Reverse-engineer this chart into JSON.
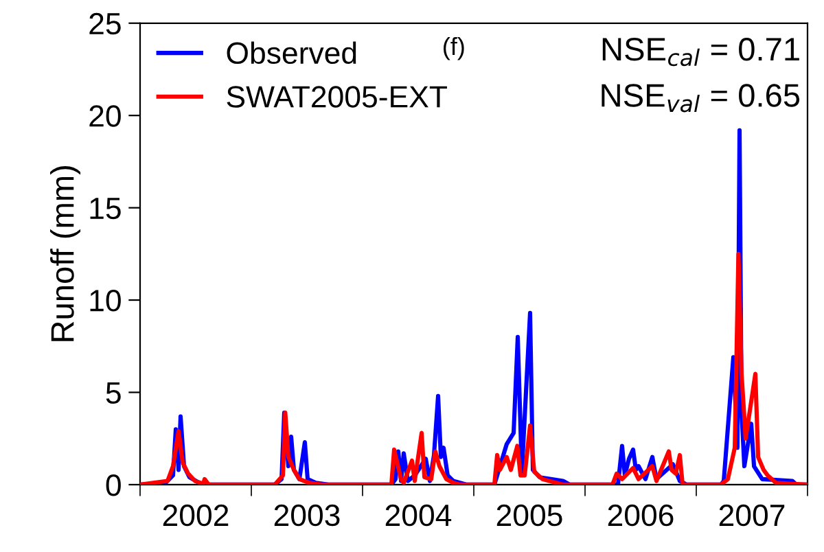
{
  "chart_data": {
    "type": "line",
    "ylabel": "Runoff (mm)",
    "annotations": [
      "(f)",
      "NSE$_{cal}$ = 0.71",
      "NSE$_{val}$ = 0.65"
    ],
    "xlim": [
      2002,
      2008
    ],
    "xticks": [
      {
        "value": 2002,
        "label": null
      },
      {
        "value": 2003,
        "label": null
      },
      {
        "value": 2004,
        "label": null
      },
      {
        "value": 2005,
        "label": null
      },
      {
        "value": 2006,
        "label": null
      },
      {
        "value": 2007,
        "label": null
      },
      {
        "value": 2008,
        "label": null
      },
      {
        "value": 2002.5,
        "label": "2002"
      },
      {
        "value": 2003.5,
        "label": "2003"
      },
      {
        "value": 2004.5,
        "label": "2004"
      },
      {
        "value": 2005.5,
        "label": "2005"
      },
      {
        "value": 2006.5,
        "label": "2006"
      },
      {
        "value": 2007.5,
        "label": "2007"
      }
    ],
    "ylim": [
      0,
      25
    ],
    "yticks": [
      0,
      5,
      10,
      15,
      20,
      25
    ],
    "grid": false,
    "legend": "top left",
    "marker": "none",
    "line_style": "solid",
    "series": [
      {
        "name": "Observed",
        "color": "#0000ff",
        "x": [
          2002.0,
          2002.222,
          2002.296,
          2002.321,
          2002.346,
          2002.364,
          2002.395,
          2002.444,
          2002.531,
          2002.593,
          2003.21,
          2003.272,
          2003.296,
          2003.333,
          2003.358,
          2003.383,
          2003.432,
          2003.481,
          2003.506,
          2003.58,
          2003.704,
          2004.259,
          2004.296,
          2004.321,
          2004.346,
          2004.37,
          2004.407,
          2004.469,
          2004.568,
          2004.605,
          2004.642,
          2004.679,
          2004.704,
          2004.728,
          2004.765,
          2004.815,
          2004.938,
          2005.185,
          2005.296,
          2005.358,
          2005.395,
          2005.432,
          2005.506,
          2005.531,
          2005.593,
          2005.802,
          2005.864,
          2006.296,
          2006.333,
          2006.358,
          2006.395,
          2006.432,
          2006.457,
          2006.481,
          2006.543,
          2006.605,
          2006.642,
          2006.79,
          2006.852,
          2006.914,
          2007.222,
          2007.247,
          2007.333,
          2007.37,
          2007.389,
          2007.407,
          2007.432,
          2007.494,
          2007.519,
          2007.593,
          2007.864,
          2007.901,
          2008.0
        ],
        "values": [
          0,
          0.05,
          0.5,
          3.0,
          0.8,
          3.7,
          1.0,
          0.4,
          0.1,
          0,
          0,
          0.3,
          3.9,
          1.0,
          2.6,
          0.8,
          0.3,
          2.3,
          0.3,
          0.1,
          0,
          0,
          0.3,
          1.8,
          0.2,
          1.7,
          0.2,
          0.5,
          1.4,
          0.2,
          1.6,
          4.8,
          1.5,
          2.0,
          0.5,
          0.2,
          0,
          0,
          2.2,
          2.8,
          8.0,
          0.7,
          9.3,
          0.8,
          0.4,
          0.2,
          0,
          0,
          2.1,
          0.5,
          1.4,
          1.9,
          0.8,
          1.0,
          0.3,
          1.5,
          0.3,
          1.1,
          0.2,
          0,
          0,
          0.2,
          6.9,
          2.0,
          19.2,
          4.0,
          1.0,
          3.3,
          1.0,
          0.3,
          0.2,
          0,
          0
        ]
      },
      {
        "name": "SWAT2005-EXT",
        "color": "#ff0000",
        "x": [
          2002.0,
          2002.247,
          2002.296,
          2002.346,
          2002.383,
          2002.432,
          2002.494,
          2002.568,
          2002.58,
          2002.617,
          2003.21,
          2003.284,
          2003.305,
          2003.333,
          2003.383,
          2003.432,
          2003.519,
          2003.642,
          2004.259,
          2004.284,
          2004.346,
          2004.37,
          2004.444,
          2004.469,
          2004.531,
          2004.556,
          2004.617,
          2004.654,
          2004.691,
          2004.753,
          2004.815,
          2004.877,
          2005.185,
          2005.21,
          2005.235,
          2005.296,
          2005.333,
          2005.391,
          2005.42,
          2005.457,
          2005.506,
          2005.543,
          2005.617,
          2005.741,
          2005.802,
          2006.247,
          2006.284,
          2006.333,
          2006.432,
          2006.481,
          2006.605,
          2006.642,
          2006.753,
          2006.778,
          2006.815,
          2006.852,
          2006.877,
          2007.222,
          2007.284,
          2007.346,
          2007.379,
          2007.407,
          2007.444,
          2007.531,
          2007.556,
          2007.605,
          2007.642,
          2007.716,
          2007.84,
          2008.0
        ],
        "values": [
          0,
          0.2,
          1.0,
          2.9,
          1.2,
          0.6,
          0.2,
          0.05,
          0.3,
          0,
          0,
          0.5,
          3.9,
          1.5,
          0.8,
          0.3,
          0.1,
          0,
          0,
          1.9,
          0.3,
          0.1,
          1.3,
          0.2,
          2.8,
          0.4,
          0.3,
          1.8,
          1.0,
          0.3,
          0.1,
          0,
          0,
          1.6,
          0.8,
          1.5,
          0.8,
          2.1,
          0.5,
          0.5,
          3.2,
          0.7,
          0.3,
          0.1,
          0,
          0,
          0.6,
          0.3,
          0.9,
          0.3,
          1.0,
          0.2,
          1.8,
          0.8,
          0.6,
          1.6,
          0,
          0,
          0.3,
          2.0,
          12.5,
          6.0,
          2.5,
          6.0,
          1.5,
          0.8,
          0.5,
          0.1,
          0.05,
          0
        ]
      }
    ]
  }
}
